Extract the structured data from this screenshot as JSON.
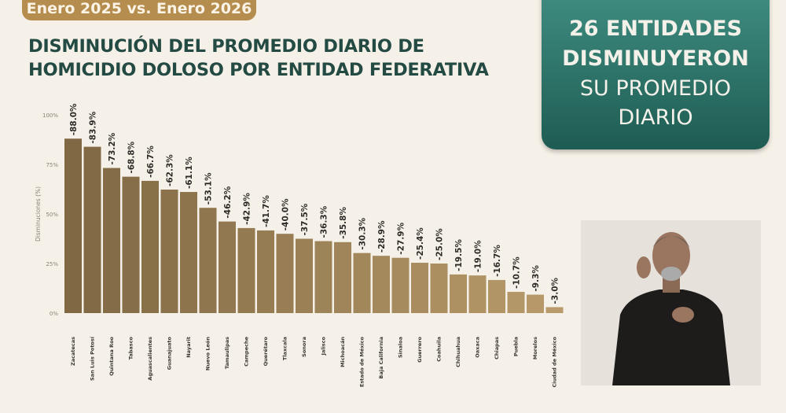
{
  "badge": "Enero 2025 vs. Enero 2026",
  "title_lines": [
    "DISMINUCIÓN DEL PROMEDIO DIARIO DE",
    "HOMICIDIO DOLOSO POR ENTIDAD FEDERATIVA"
  ],
  "callout": {
    "line1": "26 ENTIDADES",
    "line2": "DISMINUYERON",
    "line3": "SU PROMEDIO",
    "line4": "DIARIO"
  },
  "colors": {
    "bar_start": "#7f6843",
    "bar_end": "#b99b6b",
    "title": "#234a43",
    "badge": "#b58e4f",
    "callout": "#2f7469"
  },
  "chart_data": {
    "type": "bar",
    "ylabel": "Disminuciones (%)",
    "ylim": [
      0,
      100
    ],
    "yticks": [
      "0%",
      "25%",
      "50%",
      "75%",
      "100%"
    ],
    "grid": false,
    "categories": [
      "Zacatecas",
      "San Luis Potosí",
      "Quintana Roo",
      "Tabasco",
      "Aguascalientes",
      "Guanajuato",
      "Nayarit",
      "Nuevo León",
      "Tamaulipas",
      "Campeche",
      "Querétaro",
      "Tlaxcala",
      "Sonora",
      "Jalisco",
      "Michoacán",
      "Estado de México",
      "Baja California",
      "Sinaloa",
      "Guerrero",
      "Coahuila",
      "Chihuahua",
      "Oaxaca",
      "Chiapas",
      "Puebla",
      "Morelos",
      "Ciudad de México"
    ],
    "values": [
      88.0,
      83.9,
      73.2,
      68.8,
      66.7,
      62.3,
      61.1,
      53.1,
      46.2,
      42.9,
      41.7,
      40.0,
      37.5,
      36.3,
      35.8,
      30.3,
      28.9,
      27.9,
      25.4,
      25.0,
      19.5,
      19.0,
      16.7,
      10.7,
      9.3,
      3.0
    ],
    "data_labels": [
      "-88.0%",
      "-83.9%",
      "-73.2%",
      "-68.8%",
      "-66.7%",
      "-62.3%",
      "-61.1%",
      "-53.1%",
      "-46.2%",
      "-42.9%",
      "-41.7%",
      "-40.0%",
      "-37.5%",
      "-36.3%",
      "-35.8%",
      "-30.3%",
      "-28.9%",
      "-27.9%",
      "-25.4%",
      "-25.0%",
      "-19.5%",
      "-19.0%",
      "-16.7%",
      "-10.7%",
      "-9.3%",
      "-3.0%"
    ]
  }
}
